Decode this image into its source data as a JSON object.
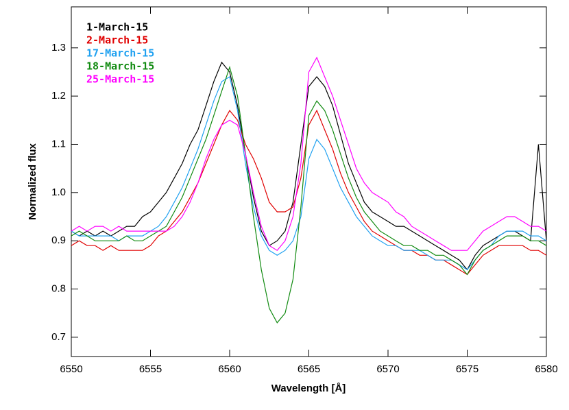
{
  "chart_data": {
    "type": "line",
    "xlabel": "Wavelength [Å]",
    "ylabel": "Normalized flux",
    "x": [
      6550,
      6550.5,
      6551,
      6551.5,
      6552,
      6552.5,
      6553,
      6553.5,
      6554,
      6554.5,
      6555,
      6555.5,
      6556,
      6556.5,
      6557,
      6557.5,
      6558,
      6558.5,
      6559,
      6559.5,
      6560,
      6560.5,
      6561,
      6561.5,
      6562,
      6562.5,
      6563,
      6563.5,
      6564,
      6564.5,
      6565,
      6565.5,
      6566,
      6566.5,
      6567,
      6567.5,
      6568,
      6568.5,
      6569,
      6569.5,
      6570,
      6570.5,
      6571,
      6571.5,
      6572,
      6572.5,
      6573,
      6573.5,
      6574,
      6574.5,
      6575,
      6575.5,
      6576,
      6576.5,
      6577,
      6577.5,
      6578,
      6578.5,
      6579,
      6579.5,
      6580
    ],
    "series": [
      {
        "name": "1-March-15",
        "color": "#000000",
        "values": [
          0.92,
          0.91,
          0.92,
          0.91,
          0.92,
          0.91,
          0.92,
          0.93,
          0.93,
          0.95,
          0.96,
          0.98,
          1.0,
          1.03,
          1.06,
          1.1,
          1.13,
          1.18,
          1.23,
          1.27,
          1.25,
          1.18,
          1.08,
          0.99,
          0.92,
          0.89,
          0.9,
          0.92,
          0.98,
          1.1,
          1.22,
          1.24,
          1.22,
          1.18,
          1.12,
          1.06,
          1.02,
          0.98,
          0.96,
          0.95,
          0.94,
          0.93,
          0.93,
          0.92,
          0.91,
          0.9,
          0.89,
          0.88,
          0.87,
          0.86,
          0.84,
          0.87,
          0.89,
          0.9,
          0.91,
          0.92,
          0.92,
          0.91,
          0.9,
          1.1,
          0.9
        ]
      },
      {
        "name": "2-March-15",
        "color": "#e00000",
        "values": [
          0.89,
          0.9,
          0.89,
          0.89,
          0.88,
          0.89,
          0.88,
          0.88,
          0.88,
          0.88,
          0.89,
          0.91,
          0.92,
          0.94,
          0.96,
          0.99,
          1.02,
          1.06,
          1.1,
          1.14,
          1.17,
          1.15,
          1.1,
          1.07,
          1.03,
          0.98,
          0.96,
          0.96,
          0.97,
          1.03,
          1.14,
          1.17,
          1.13,
          1.09,
          1.04,
          1.0,
          0.97,
          0.94,
          0.92,
          0.91,
          0.9,
          0.89,
          0.88,
          0.88,
          0.87,
          0.87,
          0.86,
          0.86,
          0.85,
          0.84,
          0.83,
          0.85,
          0.87,
          0.88,
          0.89,
          0.89,
          0.89,
          0.89,
          0.88,
          0.88,
          0.87
        ]
      },
      {
        "name": "17-March-15",
        "color": "#1ea0f0",
        "values": [
          0.92,
          0.91,
          0.91,
          0.91,
          0.91,
          0.91,
          0.9,
          0.91,
          0.91,
          0.91,
          0.92,
          0.93,
          0.95,
          0.98,
          1.01,
          1.05,
          1.09,
          1.14,
          1.19,
          1.23,
          1.24,
          1.17,
          1.06,
          0.97,
          0.91,
          0.88,
          0.87,
          0.88,
          0.9,
          0.95,
          1.07,
          1.11,
          1.09,
          1.05,
          1.01,
          0.98,
          0.95,
          0.93,
          0.91,
          0.9,
          0.89,
          0.89,
          0.88,
          0.88,
          0.88,
          0.87,
          0.86,
          0.86,
          0.86,
          0.85,
          0.84,
          0.86,
          0.88,
          0.89,
          0.91,
          0.92,
          0.92,
          0.92,
          0.91,
          0.91,
          0.9
        ]
      },
      {
        "name": "18-March-15",
        "color": "#108a10",
        "values": [
          0.91,
          0.92,
          0.91,
          0.9,
          0.9,
          0.9,
          0.9,
          0.91,
          0.9,
          0.9,
          0.91,
          0.92,
          0.93,
          0.96,
          0.99,
          1.03,
          1.07,
          1.11,
          1.16,
          1.21,
          1.26,
          1.2,
          1.08,
          0.95,
          0.84,
          0.76,
          0.73,
          0.75,
          0.82,
          0.97,
          1.16,
          1.19,
          1.17,
          1.13,
          1.08,
          1.03,
          0.99,
          0.96,
          0.94,
          0.92,
          0.91,
          0.9,
          0.89,
          0.89,
          0.88,
          0.88,
          0.87,
          0.87,
          0.86,
          0.85,
          0.83,
          0.86,
          0.88,
          0.89,
          0.9,
          0.91,
          0.91,
          0.91,
          0.9,
          0.9,
          0.89
        ]
      },
      {
        "name": "25-March-15",
        "color": "#ff00ff",
        "values": [
          0.92,
          0.93,
          0.92,
          0.93,
          0.93,
          0.92,
          0.93,
          0.92,
          0.92,
          0.92,
          0.92,
          0.92,
          0.92,
          0.93,
          0.95,
          0.98,
          1.02,
          1.07,
          1.11,
          1.14,
          1.15,
          1.14,
          1.08,
          1.0,
          0.93,
          0.89,
          0.88,
          0.9,
          0.95,
          1.06,
          1.25,
          1.28,
          1.24,
          1.2,
          1.15,
          1.1,
          1.05,
          1.02,
          1.0,
          0.99,
          0.98,
          0.96,
          0.95,
          0.93,
          0.92,
          0.91,
          0.9,
          0.89,
          0.88,
          0.88,
          0.88,
          0.9,
          0.92,
          0.93,
          0.94,
          0.95,
          0.95,
          0.94,
          0.93,
          0.93,
          0.92
        ]
      }
    ],
    "xlim": [
      6550,
      6580
    ],
    "xticks": [
      6550,
      6555,
      6560,
      6565,
      6570,
      6575,
      6580
    ],
    "ylim": [
      0.66,
      1.385
    ],
    "yticks": [
      0.7,
      0.8,
      0.9,
      {
        "value": 1,
        "label": "1.0"
      },
      1.1,
      1.2,
      1.3
    ],
    "legend": "upper left"
  }
}
